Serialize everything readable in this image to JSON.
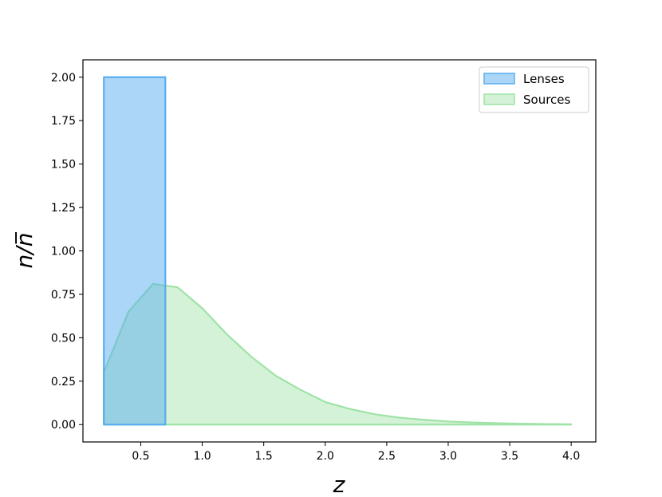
{
  "chart_data": {
    "type": "area",
    "xlabel": "z",
    "ylabel": "n/n̅",
    "xlim": [
      0.03,
      4.2
    ],
    "ylim": [
      -0.1,
      2.1
    ],
    "xticks": [
      0.5,
      1.0,
      1.5,
      2.0,
      2.5,
      3.0,
      3.5,
      4.0
    ],
    "xtick_labels": [
      "0.5",
      "1.0",
      "1.5",
      "2.0",
      "2.5",
      "3.0",
      "3.5",
      "4.0"
    ],
    "yticks": [
      0.0,
      0.25,
      0.5,
      0.75,
      1.0,
      1.25,
      1.5,
      1.75,
      2.0
    ],
    "ytick_labels": [
      "0.00",
      "0.25",
      "0.50",
      "0.75",
      "1.00",
      "1.25",
      "1.50",
      "1.75",
      "2.00"
    ],
    "grid": false,
    "legend_position": "top-right",
    "series": [
      {
        "name": "Lenses",
        "color": "#5aaef0",
        "x": [
          0.2,
          0.2,
          0.7,
          0.7
        ],
        "y": [
          0.0,
          2.0,
          2.0,
          0.0
        ]
      },
      {
        "name": "Sources",
        "color": "#9fe3a6",
        "x": [
          0.2,
          0.4,
          0.6,
          0.8,
          1.0,
          1.2,
          1.4,
          1.6,
          1.8,
          2.0,
          2.2,
          2.4,
          2.6,
          2.8,
          3.0,
          3.2,
          3.4,
          3.6,
          3.8,
          4.0
        ],
        "y": [
          0.3,
          0.65,
          0.81,
          0.79,
          0.67,
          0.52,
          0.39,
          0.28,
          0.2,
          0.13,
          0.09,
          0.06,
          0.04,
          0.028,
          0.018,
          0.012,
          0.008,
          0.005,
          0.003,
          0.002
        ]
      }
    ]
  }
}
